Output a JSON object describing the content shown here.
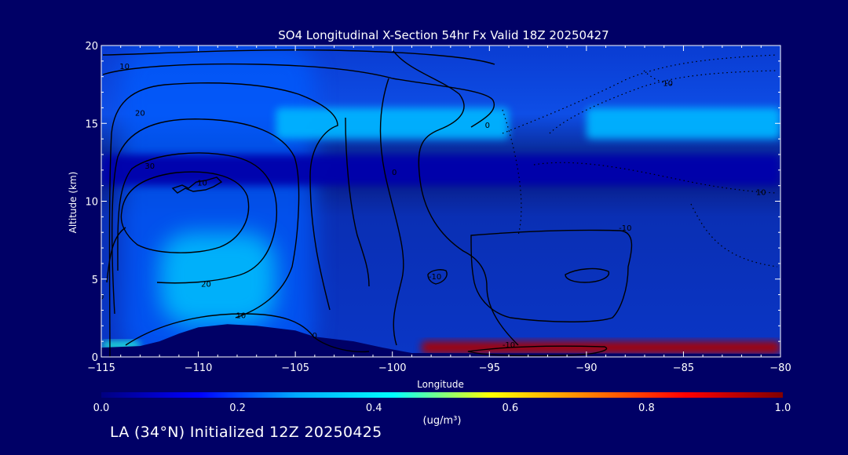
{
  "footer": "LA (34°N) Initialized 12Z 20250425",
  "colors": {
    "background": "#000066",
    "text": "#ffffff",
    "contour": "#000000"
  },
  "chart_data": {
    "type": "heatmap",
    "title": "SO4 Longitudinal X-Section 54hr  Fx Valid 18Z 20250427",
    "xlabel": "Longitude",
    "ylabel": "Altitude (km)",
    "xlim": [
      -115,
      -80
    ],
    "ylim": [
      0,
      20
    ],
    "x_ticks": [
      -115,
      -110,
      -105,
      -100,
      -95,
      -90,
      -85,
      -80
    ],
    "x_tick_labels": [
      "−115",
      "−110",
      "−105",
      "−100",
      "−95",
      "−90",
      "−85",
      "−80"
    ],
    "y_ticks": [
      0,
      5,
      10,
      15,
      20
    ],
    "y_tick_labels": [
      "0",
      "5",
      "10",
      "15",
      "20"
    ],
    "grid": false,
    "colorbar": {
      "label": "(ug/m³)",
      "range": [
        0.0,
        1.0
      ],
      "ticks": [
        0.0,
        0.2,
        0.4,
        0.6,
        0.8,
        1.0
      ],
      "tick_labels": [
        "0.0",
        "0.2",
        "0.4",
        "0.6",
        "0.8",
        "1.0"
      ],
      "colormap": [
        "#000080",
        "#0000ff",
        "#00aaff",
        "#00ffff",
        "#ffff00",
        "#ff8000",
        "#ff0000",
        "#800000"
      ]
    },
    "terrain_km": [
      [
        -115,
        0.6
      ],
      [
        -113,
        0.7
      ],
      [
        -112,
        1.0
      ],
      [
        -111,
        1.5
      ],
      [
        -110,
        1.9
      ],
      [
        -108.5,
        2.1
      ],
      [
        -107,
        2.0
      ],
      [
        -105,
        1.7
      ],
      [
        -104,
        1.3
      ],
      [
        -102,
        1.0
      ],
      [
        -100.5,
        0.6
      ],
      [
        -99,
        0.25
      ],
      [
        -80,
        0.2
      ]
    ],
    "concentration_regions": [
      {
        "value": 0.22,
        "lon": [
          -114,
          -104
        ],
        "alt": [
          0,
          20
        ]
      },
      {
        "value": 0.35,
        "lon": [
          -112,
          -106
        ],
        "alt": [
          2,
          8
        ]
      },
      {
        "value": 0.3,
        "lon": [
          -106,
          -94
        ],
        "alt": [
          14,
          16
        ]
      },
      {
        "value": 0.3,
        "lon": [
          -90,
          -80
        ],
        "alt": [
          14,
          16
        ]
      },
      {
        "value": 0.05,
        "lon": [
          -115,
          -80
        ],
        "alt": [
          11,
          13
        ]
      },
      {
        "value": 0.45,
        "lon": [
          -115,
          -113
        ],
        "alt": [
          0.5,
          1
        ]
      },
      {
        "value": 0.95,
        "lon": [
          -98.5,
          -80
        ],
        "alt": [
          0.2,
          1
        ]
      }
    ],
    "contour_labels": [
      {
        "text": "10",
        "lon": -113.8,
        "alt": 18.5
      },
      {
        "text": "20",
        "lon": -113.0,
        "alt": 15.5
      },
      {
        "text": "30",
        "lon": -112.5,
        "alt": 12.1
      },
      {
        "text": "10",
        "lon": -109.8,
        "alt": 11.0
      },
      {
        "text": "20",
        "lon": -109.6,
        "alt": 4.5
      },
      {
        "text": "10",
        "lon": -107.8,
        "alt": 2.5
      },
      {
        "text": "0",
        "lon": -115.0,
        "alt": 3.7
      },
      {
        "text": "0",
        "lon": -104.0,
        "alt": 1.2
      },
      {
        "text": "0",
        "lon": -99.9,
        "alt": 11.7
      },
      {
        "text": "0",
        "lon": -95.1,
        "alt": 14.7
      },
      {
        "text": "-10",
        "lon": -97.8,
        "alt": 5.0
      },
      {
        "text": "-10",
        "lon": -88.0,
        "alt": 8.1
      },
      {
        "text": "-10",
        "lon": -94.0,
        "alt": 0.6
      },
      {
        "text": "10",
        "lon": -81.0,
        "alt": 10.4
      },
      {
        "text": "10",
        "lon": -85.8,
        "alt": 17.4
      }
    ]
  }
}
